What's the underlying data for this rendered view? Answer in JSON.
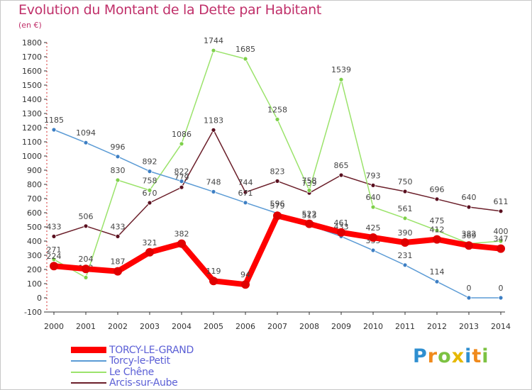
{
  "header": {
    "title": "Evolution du Montant de la Dette par Habitant",
    "subtitle": "(en €)"
  },
  "logo": {
    "letters": [
      "P",
      "r",
      "o",
      "x",
      "i",
      "t",
      "i"
    ],
    "colors": [
      "#2f8fd0",
      "#f08a1c",
      "#7cc242",
      "#e6b800",
      "#2f8fd0",
      "#f08a1c",
      "#7cc242"
    ]
  },
  "chart_data": {
    "type": "line",
    "title": "Evolution du Montant de la Dette par Habitant",
    "ylabel": "(en €)",
    "xlabel": "",
    "ylim": [
      -100,
      1800
    ],
    "y_ticks": [
      -100,
      0,
      100,
      200,
      300,
      400,
      500,
      600,
      700,
      800,
      900,
      1000,
      1100,
      1200,
      1300,
      1400,
      1500,
      1600,
      1700,
      1800
    ],
    "grid": false,
    "legend_position": "bottom-left",
    "categories": [
      "2000",
      "2001",
      "2002",
      "2003",
      "2004",
      "2005",
      "2006",
      "2007",
      "2008",
      "2009",
      "2010",
      "2011",
      "2012",
      "2013",
      "2014"
    ],
    "series": [
      {
        "name": "Arcis-sur-Aube",
        "color": "#6b1f2a",
        "marker": "#5a1020",
        "values": [
          433,
          506,
          433,
          670,
          779,
          1183,
          744,
          823,
          739,
          865,
          793,
          750,
          696,
          640,
          611
        ],
        "labels": [
          "433",
          "506",
          "433",
          "670",
          "779",
          "1183",
          "744",
          "823",
          "739",
          "865",
          "793",
          "750",
          "696",
          "640",
          "611"
        ]
      },
      {
        "name": "Le Chêne",
        "color": "#9be36b",
        "marker": "#7ed04a",
        "values": [
          271,
          143,
          830,
          758,
          1086,
          1744,
          1685,
          1258,
          758,
          1539,
          640,
          561,
          475,
          382,
          400
        ],
        "labels": [
          "271",
          "143",
          "830",
          "758",
          "1086",
          "1744",
          "1685",
          "1258",
          "758",
          "1539",
          "640",
          "561",
          "475",
          "382",
          "400"
        ]
      },
      {
        "name": "Torcy-le-Petit",
        "color": "#5b9bd5",
        "marker": "#3d7fc4",
        "values": [
          1185,
          1094,
          996,
          892,
          822,
          748,
          671,
          596,
          513,
          433,
          335,
          231,
          114,
          0,
          0
        ],
        "labels": [
          "1185",
          "1094",
          "996",
          "892",
          "822",
          "748",
          "671",
          "596",
          "513",
          "433",
          "335",
          "231",
          "114",
          "0",
          "0"
        ]
      },
      {
        "name": "TORCY-LE-GRAND",
        "color": "#ff0000",
        "marker": "#e00000",
        "values": [
          224,
          204,
          187,
          321,
          382,
          119,
          94,
          579,
          522,
          461,
          425,
          390,
          412,
          369,
          347
        ],
        "labels": [
          "224",
          "204",
          "187",
          "321",
          "382",
          "119",
          "94",
          "579",
          "522",
          "461",
          "425",
          "390",
          "412",
          "369",
          "347"
        ]
      }
    ],
    "legend": [
      "TORCY-LE-GRAND",
      "Torcy-le-Petit",
      "Le Chêne",
      "Arcis-sur-Aube"
    ]
  }
}
